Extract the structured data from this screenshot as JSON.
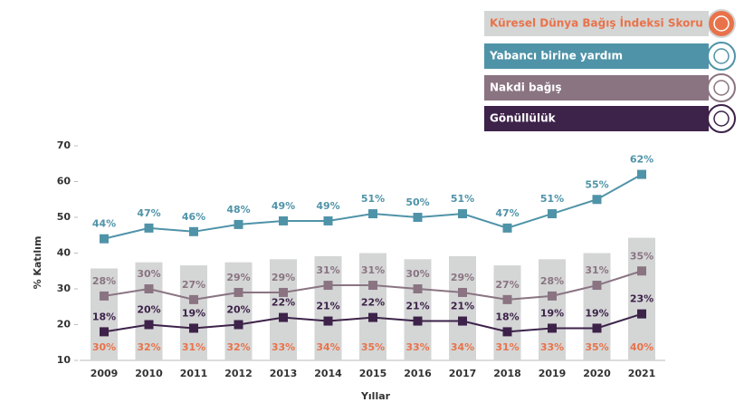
{
  "chart_data": {
    "type": "combo",
    "categories": [
      "2009",
      "2010",
      "2011",
      "2012",
      "2013",
      "2014",
      "2015",
      "2016",
      "2017",
      "2018",
      "2019",
      "2020",
      "2021"
    ],
    "x_label": "Yıllar",
    "y_label": "% Katılım",
    "ylim": [
      10,
      70
    ],
    "yticks": [
      10,
      20,
      30,
      40,
      50,
      60,
      70
    ],
    "y2lim": [
      0,
      70
    ],
    "series": [
      {
        "name": "Küresel Dünya Bağış İndeksi Skoru",
        "type": "bar",
        "axis": "y2",
        "color": "#d4d6d6",
        "label_color": "#e8734a",
        "values": [
          30,
          32,
          31,
          32,
          33,
          34,
          35,
          33,
          34,
          31,
          33,
          35,
          40
        ],
        "value_labels": [
          "30%",
          "32%",
          "31%",
          "32%",
          "33%",
          "34%",
          "35%",
          "33%",
          "34%",
          "31%",
          "33%",
          "35%",
          "40%"
        ]
      },
      {
        "name": "Yabancı birine yardım",
        "type": "line",
        "color": "#4f93a8",
        "label_color": "#4f93a8",
        "values": [
          44,
          47,
          46,
          48,
          49,
          49,
          51,
          50,
          51,
          47,
          51,
          55,
          62
        ],
        "value_labels": [
          "44%",
          "47%",
          "46%",
          "48%",
          "49%",
          "49%",
          "51%",
          "50%",
          "51%",
          "47%",
          "51%",
          "55%",
          "62%"
        ]
      },
      {
        "name": "Nakdi bağış",
        "type": "line",
        "color": "#8a7482",
        "label_color": "#8a7482",
        "values": [
          28,
          30,
          27,
          29,
          29,
          31,
          31,
          30,
          29,
          27,
          28,
          31,
          35
        ],
        "value_labels": [
          "28%",
          "30%",
          "27%",
          "29%",
          "29%",
          "31%",
          "31%",
          "30%",
          "29%",
          "27%",
          "28%",
          "31%",
          "35%"
        ]
      },
      {
        "name": "Gönüllülük",
        "type": "line",
        "color": "#3d2249",
        "label_color": "#3d2249",
        "values": [
          18,
          20,
          19,
          20,
          22,
          21,
          22,
          21,
          21,
          18,
          19,
          19,
          23
        ],
        "value_labels": [
          "18%",
          "20%",
          "19%",
          "20%",
          "22%",
          "21%",
          "22%",
          "21%",
          "21%",
          "18%",
          "19%",
          "19%",
          "23%"
        ]
      }
    ]
  }
}
